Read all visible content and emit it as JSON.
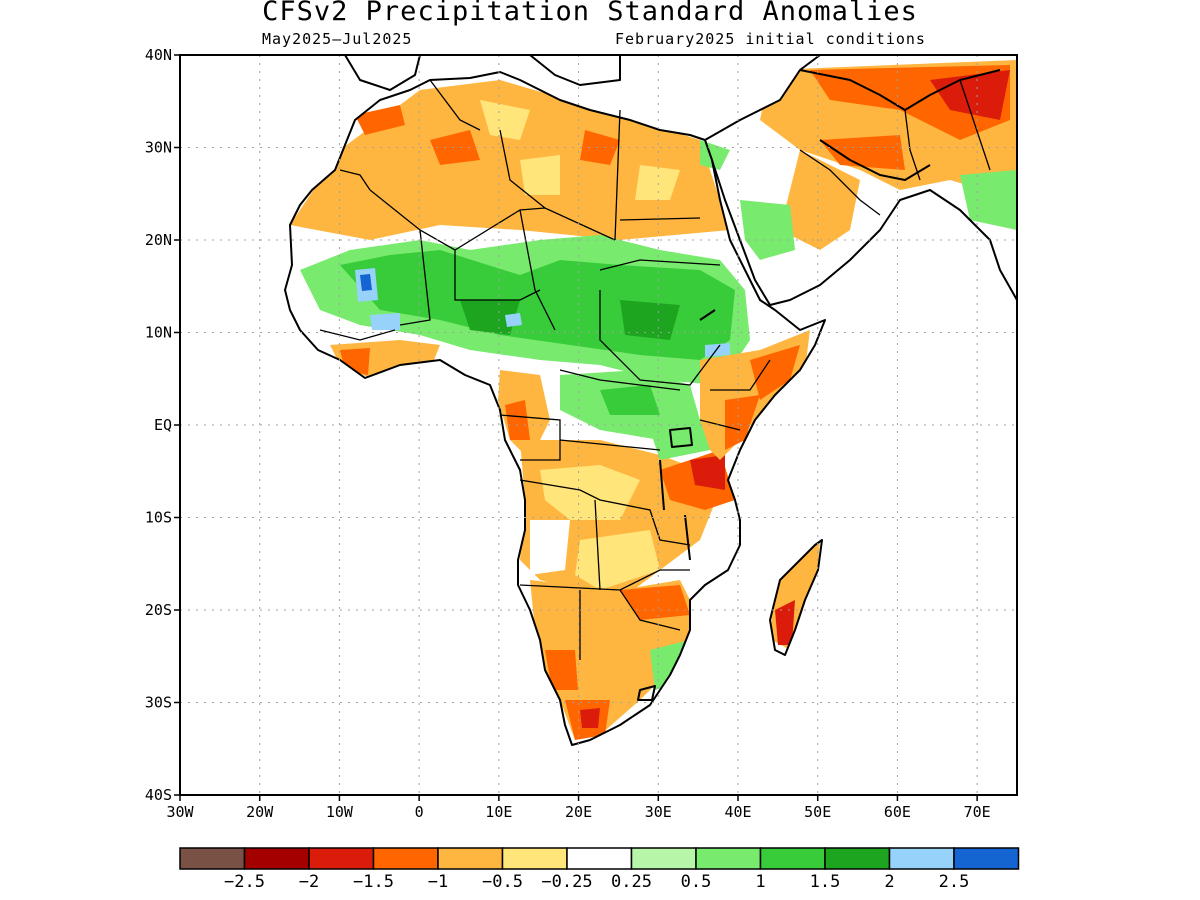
{
  "title": "CFSv2 Precipitation Standard Anomalies",
  "period": "May2025–Jul2025",
  "init": "February2025 initial conditions",
  "lat_labels": [
    "40N",
    "30N",
    "20N",
    "10N",
    "EQ",
    "10S",
    "20S",
    "30S",
    "40S"
  ],
  "lon_labels": [
    "30W",
    "20W",
    "10W",
    "0",
    "10E",
    "20E",
    "30E",
    "40E",
    "50E",
    "60E",
    "70E"
  ],
  "colorbar": {
    "colors": [
      "#7a5145",
      "#a50000",
      "#dc1c0a",
      "#ff6600",
      "#ffb640",
      "#ffe57a",
      "#ffffff",
      "#b7f5a8",
      "#78ea6e",
      "#38cc3a",
      "#1da520",
      "#96d2fa",
      "#1464d2"
    ],
    "labels": [
      "−2.5",
      "−2",
      "−1.5",
      "−1",
      "−0.5",
      "−0.25",
      "0.25",
      "0.5",
      "1",
      "1.5",
      "2",
      "2.5"
    ]
  }
}
